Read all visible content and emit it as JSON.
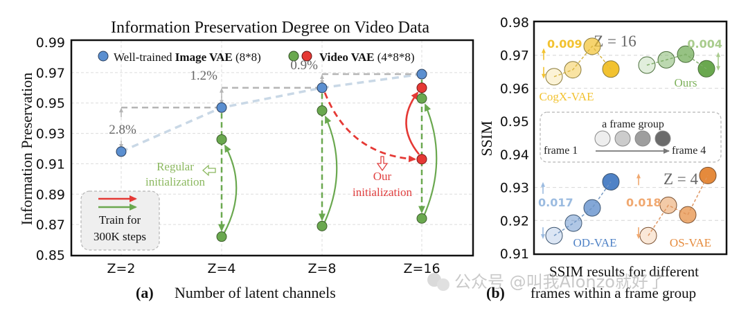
{
  "colors": {
    "image_vae": "#5b8fd0",
    "video_green": "#6aa84f",
    "video_red": "#e53935",
    "regular_init_text": "#8bb85f",
    "our_init_text": "#e04040",
    "dashed_gray": "#b5b5b5",
    "trend_blue": "#c9d8e6",
    "cogx": "#f2c230",
    "ours": "#6aa84f",
    "od_vae": "#4f82c6",
    "os_vae": "#e58a3c"
  },
  "chart_data": [
    {
      "type": "scatter",
      "panel_label": "(a)",
      "title": "Information Preservation Degree on Video Data",
      "xlabel": "Number of latent channels",
      "ylabel": "Information Preservation",
      "categories": [
        "Z=2",
        "Z=4",
        "Z=8",
        "Z=16"
      ],
      "ylim": [
        0.85,
        0.99
      ],
      "yticks": [
        "0.99",
        "0.97",
        "0.95",
        "0.93",
        "0.91",
        "0.89",
        "0.87",
        "0.85"
      ],
      "ytick_values": [
        0.99,
        0.97,
        0.95,
        0.93,
        0.91,
        0.89,
        0.87,
        0.85
      ],
      "grid": true,
      "legend": {
        "placement": "top",
        "image_vae_prefix": "Well-trained ",
        "image_vae_bold": "Image VAE",
        "image_vae_suffix": " (8*8)",
        "video_vae_bold": "Video VAE",
        "video_vae_suffix": " (4*8*8)"
      },
      "series": [
        {
          "name": "Well-trained Image VAE (8*8)",
          "color_key": "image_vae",
          "points": [
            {
              "x": "Z=2",
              "y": 0.918
            },
            {
              "x": "Z=4",
              "y": 0.947
            },
            {
              "x": "Z=8",
              "y": 0.96
            },
            {
              "x": "Z=16",
              "y": 0.969
            }
          ]
        },
        {
          "name": "Video VAE after training (regular init)",
          "color_key": "video_green",
          "points": [
            {
              "x": "Z=4",
              "y": 0.926
            },
            {
              "x": "Z=8",
              "y": 0.945
            },
            {
              "x": "Z=16",
              "y": 0.953
            }
          ]
        },
        {
          "name": "Video VAE regular initialization",
          "color_key": "video_green",
          "points": [
            {
              "x": "Z=4",
              "y": 0.862
            },
            {
              "x": "Z=8",
              "y": 0.869
            },
            {
              "x": "Z=16",
              "y": 0.874
            }
          ]
        },
        {
          "name": "Video VAE our initialization",
          "color_key": "video_red",
          "points": [
            {
              "x": "Z=16",
              "y": 0.913
            }
          ]
        },
        {
          "name": "Video VAE after training (our init)",
          "color_key": "video_red",
          "points": [
            {
              "x": "Z=16",
              "y": 0.96
            }
          ]
        }
      ],
      "gap_annotations": [
        {
          "label": "2.8%",
          "x": "Z=2",
          "from": 0.918,
          "to": 0.947
        },
        {
          "label": "1.2%",
          "x": "Z=4",
          "from": 0.947,
          "to": 0.96
        },
        {
          "label": "0.9%",
          "x": "Z=8",
          "from": 0.96,
          "to": 0.969
        }
      ],
      "annotations": {
        "regular_init_line1": "Regular",
        "regular_init_line2": "initialization",
        "our_init_line1": "Our",
        "our_init_line2": "initialization",
        "train_box_line1": "Train for",
        "train_box_line2": "300K steps"
      }
    },
    {
      "type": "scatter",
      "panel_label": "(b)",
      "title": "",
      "xlabel_line1": "SSIM results for different",
      "xlabel_line2": "frames within a frame group",
      "ylabel": "SSIM",
      "ylim": [
        0.91,
        0.98
      ],
      "yticks": [
        "0.98",
        "0.97",
        "0.96",
        "0.95",
        "0.94",
        "0.93",
        "0.92",
        "0.91"
      ],
      "ytick_values": [
        0.98,
        0.97,
        0.96,
        0.95,
        0.94,
        0.93,
        0.92,
        0.91
      ],
      "grid_lines": [
        0.97,
        0.96,
        0.93,
        0.92
      ],
      "z16_label": "Z = 16",
      "z4_label": "Z = 4",
      "frame_group_legend": {
        "title": "a frame group",
        "start": "frame 1",
        "end": "frame 4",
        "shades": [
          "#eeeeee",
          "#cccccc",
          "#9e9e9e",
          "#6b6b6b"
        ]
      },
      "series": [
        {
          "name": "CogX-VAE",
          "group": "Z = 16",
          "color_key": "cogx",
          "range_label": "0.009",
          "values": [
            0.9635,
            0.9656,
            0.9727,
            0.9658
          ]
        },
        {
          "name": "Ours",
          "group": "Z = 16",
          "color_key": "ours",
          "range_label": "0.004",
          "values": [
            0.967,
            0.9686,
            0.9703,
            0.9659
          ]
        },
        {
          "name": "OD-VAE",
          "group": "Z = 4",
          "color_key": "od_vae",
          "range_label": "0.017",
          "values": [
            0.9154,
            0.9192,
            0.9238,
            0.9317
          ]
        },
        {
          "name": "OS-VAE",
          "group": "Z = 4",
          "color_key": "os_vae",
          "range_label": "0.018",
          "values": [
            0.9154,
            0.9246,
            0.9217,
            0.9336
          ]
        }
      ]
    }
  ],
  "watermark": "公众号 @叫我Alonzo就好了"
}
